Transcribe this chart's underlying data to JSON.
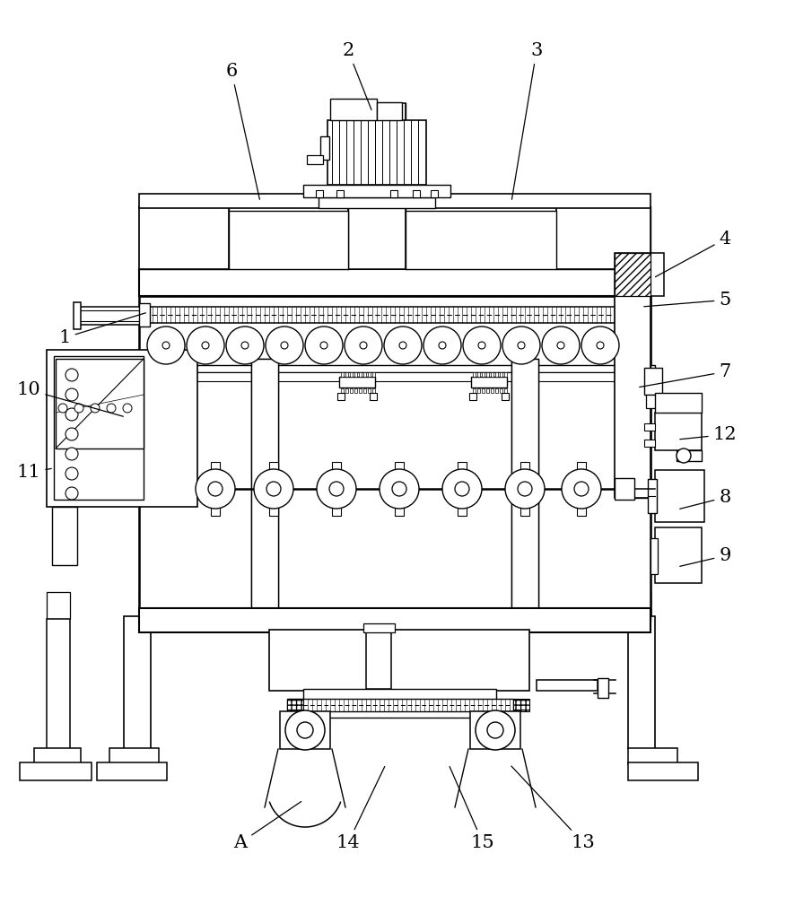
{
  "bg_color": "#ffffff",
  "lc": "#000000",
  "fig_width": 9.05,
  "fig_height": 10.0,
  "dpi": 100,
  "labels_info": [
    [
      "1",
      72,
      618,
      165,
      652
    ],
    [
      "2",
      388,
      938,
      415,
      875
    ],
    [
      "3",
      598,
      938,
      570,
      775
    ],
    [
      "4",
      808,
      728,
      728,
      690
    ],
    [
      "5",
      808,
      660,
      715,
      658
    ],
    [
      "6",
      258,
      915,
      290,
      775
    ],
    [
      "7",
      808,
      580,
      710,
      568
    ],
    [
      "8",
      808,
      440,
      755,
      432
    ],
    [
      "9",
      808,
      375,
      755,
      368
    ],
    [
      "10",
      32,
      560,
      140,
      535
    ],
    [
      "11",
      32,
      468,
      60,
      478
    ],
    [
      "12",
      808,
      510,
      755,
      510
    ],
    [
      "13",
      650,
      55,
      568,
      148
    ],
    [
      "14",
      388,
      55,
      430,
      148
    ],
    [
      "15",
      538,
      55,
      500,
      148
    ],
    [
      "A",
      268,
      55,
      338,
      108
    ]
  ]
}
